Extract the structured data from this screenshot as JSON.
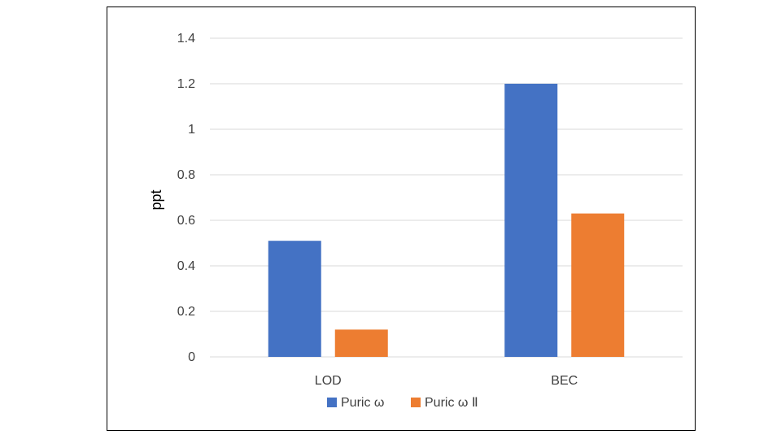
{
  "chart_data": {
    "type": "bar",
    "title": "",
    "xlabel": "",
    "ylabel": "ppt",
    "categories": [
      "LOD",
      "BEC"
    ],
    "series": [
      {
        "name": "Puric ω",
        "values": [
          0.51,
          1.2
        ],
        "color": "#4472C4"
      },
      {
        "name": "Puric ω Ⅱ",
        "values": [
          0.12,
          0.63
        ],
        "color": "#ED7D31"
      }
    ],
    "ylim": [
      0,
      1.4
    ],
    "yticks": [
      "0",
      "0.2",
      "0.4",
      "0.6",
      "0.8",
      "1",
      "1.2",
      "1.4"
    ],
    "grid": true,
    "legend_position": "bottom",
    "gridline_color": "#D9D9D9"
  }
}
